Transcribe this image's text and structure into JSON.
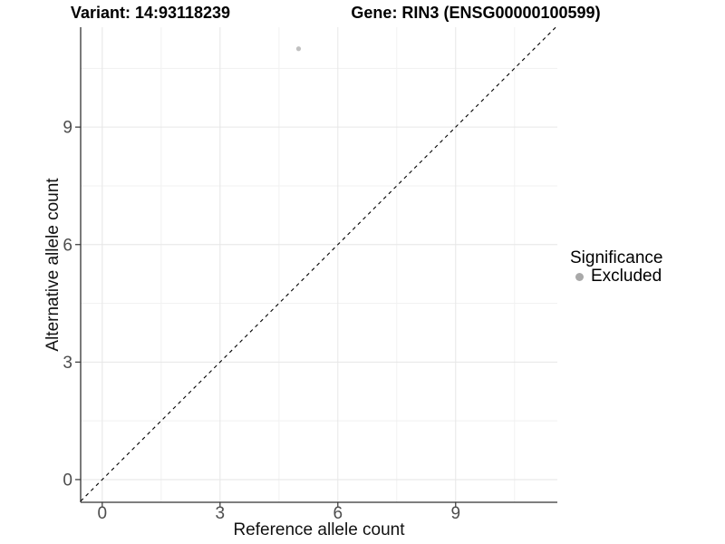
{
  "titles": {
    "variant": "Variant: 14:93118239",
    "gene": "Gene: RIN3 (ENSG00000100599)"
  },
  "axes": {
    "x_label": "Reference allele count",
    "y_label": "Alternative allele count"
  },
  "legend": {
    "title": "Significance",
    "items": [
      {
        "label": "Excluded",
        "color": "#a9a9a9"
      }
    ]
  },
  "colors": {
    "background": "#ffffff",
    "point": "#c0c0c0",
    "legend_key": "#a9a9a9",
    "grid_major": "#e6e6e6",
    "grid_minor": "#f1f1f1",
    "axis_line": "#333333",
    "tick_mark": "#333333",
    "tick_text": "#4d4d4d",
    "reference_line": "#000000"
  },
  "chart_data": {
    "type": "scatter",
    "title": "Variant: 14:93118239  |  Gene: RIN3 (ENSG00000100599)",
    "xlabel": "Reference allele count",
    "ylabel": "Alternative allele count",
    "xlim": [
      -0.55,
      11.59
    ],
    "ylim": [
      -0.58,
      11.55
    ],
    "x_ticks": [
      0,
      3,
      6,
      9
    ],
    "y_ticks": [
      0,
      3,
      6,
      9
    ],
    "x_minor_ticks": [
      1.5,
      4.5,
      7.5,
      10.5
    ],
    "y_minor_ticks": [
      1.5,
      4.5,
      7.5,
      10.5
    ],
    "grid": true,
    "legend_position": "right",
    "series": [
      {
        "name": "Excluded",
        "points": [
          {
            "x": 5,
            "y": 11
          }
        ]
      }
    ],
    "reference_line": {
      "kind": "identity",
      "slope": 1,
      "intercept": 0,
      "style": "dashed"
    }
  }
}
